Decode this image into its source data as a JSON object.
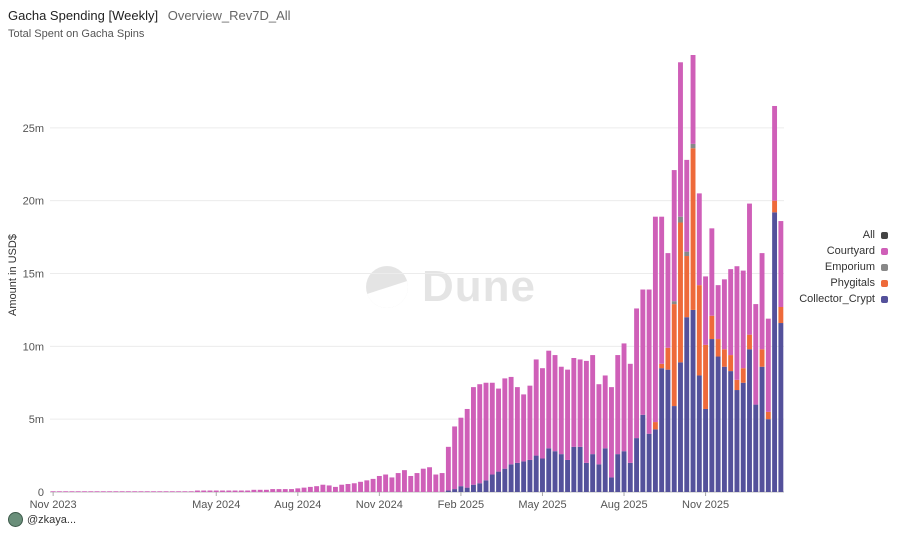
{
  "header": {
    "title": "Gacha Spending [Weekly]",
    "tab": "Overview_Rev7D_All",
    "description": "Total Spent on Gacha Spins"
  },
  "watermark": "Dune",
  "footer": {
    "user": "@zkaya..."
  },
  "colors": {
    "All": "#444444",
    "Courtyard": "#cf5fb8",
    "Emporium": "#888888",
    "Phygitals": "#ee6a3a",
    "Collector_Crypt": "#54519b"
  },
  "legend": [
    {
      "name": "All",
      "color": "#444444"
    },
    {
      "name": "Courtyard",
      "color": "#cf5fb8"
    },
    {
      "name": "Emporium",
      "color": "#888888"
    },
    {
      "name": "Phygitals",
      "color": "#ee6a3a"
    },
    {
      "name": "Collector_Crypt",
      "color": "#54519b"
    }
  ],
  "chart_data": {
    "type": "bar",
    "stacked": true,
    "ylabel": "Amount in USD$",
    "ylim": [
      0,
      30
    ],
    "y_unit": "m",
    "yticks": [
      "0",
      "5m",
      "10m",
      "15m",
      "20m",
      "25m"
    ],
    "ytick_values": [
      0,
      5,
      10,
      15,
      20,
      25
    ],
    "xticks": [
      {
        "label": "Nov 2023",
        "index": 0
      },
      {
        "label": "May 2024",
        "index": 26
      },
      {
        "label": "Aug 2024",
        "index": 39
      },
      {
        "label": "Nov 2024",
        "index": 52
      },
      {
        "label": "Feb 2025",
        "index": 65
      },
      {
        "label": "May 2025",
        "index": 78
      },
      {
        "label": "Aug 2025",
        "index": 91
      },
      {
        "label": "Nov 2025",
        "index": 104
      }
    ],
    "legend_position": "right",
    "grid": true,
    "period": "weekly",
    "series": [
      {
        "name": "Collector_Crypt",
        "values": [
          0,
          0,
          0,
          0,
          0,
          0,
          0,
          0,
          0,
          0,
          0,
          0,
          0,
          0,
          0,
          0,
          0,
          0,
          0,
          0,
          0,
          0,
          0,
          0,
          0,
          0,
          0,
          0,
          0,
          0,
          0,
          0,
          0,
          0,
          0,
          0,
          0,
          0,
          0,
          0,
          0,
          0,
          0,
          0,
          0,
          0,
          0,
          0,
          0,
          0,
          0,
          0,
          0,
          0,
          0,
          0,
          0,
          0,
          0,
          0,
          0,
          0,
          0,
          0.1,
          0.2,
          0.4,
          0.3,
          0.5,
          0.6,
          0.8,
          1.2,
          1.4,
          1.6,
          1.9,
          2.0,
          2.1,
          2.2,
          2.5,
          2.3,
          3.0,
          2.8,
          2.6,
          2.2,
          3.1,
          3.1,
          2.0,
          2.6,
          1.9,
          3.0,
          1.0,
          2.6,
          2.8,
          2.0,
          3.7,
          5.3,
          4.0,
          4.3,
          8.5,
          8.4,
          5.9,
          8.9,
          12.0,
          12.5,
          8.0,
          5.7,
          10.5,
          9.3,
          8.6,
          8.3,
          7.0,
          7.5,
          9.8,
          6.0,
          8.6,
          5.0,
          19.2,
          11.6
        ]
      },
      {
        "name": "Phygitals",
        "values": [
          0,
          0,
          0,
          0,
          0,
          0,
          0,
          0,
          0,
          0,
          0,
          0,
          0,
          0,
          0,
          0,
          0,
          0,
          0,
          0,
          0,
          0,
          0,
          0,
          0,
          0,
          0,
          0,
          0,
          0,
          0,
          0,
          0,
          0,
          0,
          0,
          0,
          0,
          0,
          0,
          0,
          0,
          0,
          0,
          0,
          0,
          0,
          0,
          0,
          0,
          0,
          0,
          0,
          0,
          0,
          0,
          0,
          0,
          0,
          0,
          0,
          0,
          0,
          0,
          0,
          0,
          0,
          0,
          0,
          0,
          0,
          0,
          0,
          0,
          0,
          0,
          0,
          0,
          0,
          0,
          0,
          0,
          0,
          0,
          0,
          0,
          0,
          0,
          0,
          0,
          0,
          0,
          0,
          0,
          0,
          0,
          0.5,
          0.3,
          1.5,
          7.0,
          9.6,
          4.2,
          11.1,
          6.2,
          4.4,
          1.6,
          1.2,
          1.2,
          1.1,
          0.7,
          1.0,
          1.0,
          0,
          1.2,
          0.5,
          0.8,
          1.1
        ]
      },
      {
        "name": "Emporium",
        "values": [
          0,
          0,
          0,
          0,
          0,
          0,
          0,
          0,
          0,
          0,
          0,
          0,
          0,
          0,
          0,
          0,
          0,
          0,
          0,
          0,
          0,
          0,
          0,
          0,
          0,
          0,
          0,
          0,
          0,
          0,
          0,
          0,
          0,
          0,
          0,
          0,
          0,
          0,
          0,
          0,
          0,
          0,
          0,
          0,
          0,
          0,
          0,
          0,
          0,
          0,
          0,
          0,
          0,
          0,
          0,
          0,
          0,
          0,
          0,
          0,
          0,
          0,
          0,
          0,
          0,
          0,
          0,
          0,
          0,
          0,
          0,
          0,
          0,
          0,
          0,
          0,
          0,
          0,
          0,
          0,
          0,
          0,
          0,
          0,
          0,
          0,
          0,
          0,
          0,
          0,
          0,
          0,
          0,
          0,
          0,
          0,
          0,
          0,
          0,
          0.2,
          0.4,
          0.3,
          0.3,
          0,
          0,
          0,
          0,
          0,
          0,
          0,
          0,
          0,
          0,
          0,
          0,
          0,
          0
        ]
      },
      {
        "name": "Courtyard",
        "values": [
          0.05,
          0.05,
          0.05,
          0.05,
          0.05,
          0.05,
          0.05,
          0.05,
          0.05,
          0.05,
          0.05,
          0.05,
          0.05,
          0.05,
          0.05,
          0.05,
          0.05,
          0.05,
          0.05,
          0.05,
          0.05,
          0.05,
          0.05,
          0.1,
          0.1,
          0.1,
          0.1,
          0.1,
          0.1,
          0.1,
          0.1,
          0.1,
          0.15,
          0.15,
          0.15,
          0.2,
          0.2,
          0.2,
          0.2,
          0.25,
          0.3,
          0.35,
          0.4,
          0.5,
          0.45,
          0.35,
          0.5,
          0.55,
          0.6,
          0.7,
          0.8,
          0.9,
          1.1,
          1.2,
          1.0,
          1.3,
          1.5,
          1.1,
          1.3,
          1.6,
          1.7,
          1.2,
          1.3,
          3.0,
          4.3,
          4.7,
          5.4,
          6.7,
          6.8,
          6.7,
          6.3,
          5.7,
          6.2,
          6.0,
          5.2,
          4.6,
          5.1,
          6.6,
          6.2,
          6.7,
          6.6,
          6.0,
          6.2,
          6.1,
          6.0,
          7.0,
          6.8,
          5.5,
          5.0,
          6.2,
          6.8,
          7.4,
          6.8,
          8.9,
          8.6,
          9.9,
          14.1,
          10.1,
          6.5,
          9.0,
          10.6,
          6.3,
          6.1,
          6.3,
          4.7,
          6.0,
          3.7,
          4.8,
          5.9,
          7.8,
          6.7,
          9.0,
          6.9,
          6.6,
          6.4,
          6.5,
          5.9
        ]
      }
    ]
  }
}
